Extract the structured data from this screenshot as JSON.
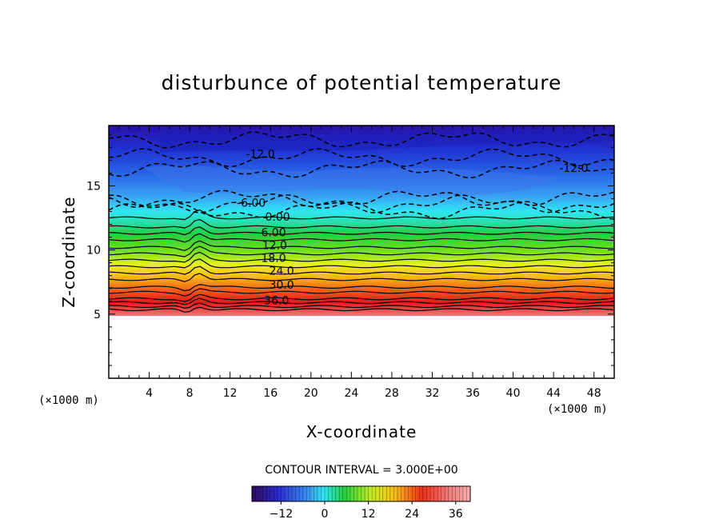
{
  "chart_data": {
    "type": "contour",
    "title": "disturbunce of potential temperature",
    "xlabel": "X-coordinate",
    "ylabel": "Z-coordinate",
    "x_unit": "(×1000 m)",
    "y_unit": "(×1000 m)",
    "xlim": [
      0,
      50
    ],
    "ylim": [
      0,
      19.7
    ],
    "x_ticks": [
      4,
      8,
      12,
      16,
      20,
      24,
      28,
      32,
      36,
      40,
      44,
      48
    ],
    "y_ticks": [
      5,
      10,
      15
    ],
    "terrain_top_z": 5,
    "contour_interval_label": "CONTOUR INTERVAL = 3.000E+00",
    "contour_labels": [
      {
        "text": "-12.0",
        "x": 15.0,
        "z": 17.3
      },
      {
        "text": "-12.0",
        "x": 46.0,
        "z": 16.2
      },
      {
        "text": "-6.00",
        "x": 14.1,
        "z": 13.5
      },
      {
        "text": "0.00",
        "x": 16.7,
        "z": 12.4
      },
      {
        "text": "6.00",
        "x": 16.3,
        "z": 11.2
      },
      {
        "text": "12.0",
        "x": 16.4,
        "z": 10.2
      },
      {
        "text": "18.0",
        "x": 16.3,
        "z": 9.2
      },
      {
        "text": "24.0",
        "x": 17.1,
        "z": 8.2
      },
      {
        "text": "30.0",
        "x": 17.1,
        "z": 7.1
      },
      {
        "text": "36.0",
        "x": 16.6,
        "z": 5.9
      }
    ],
    "colorbar": {
      "min": -20,
      "max": 40,
      "ticks": [
        -12,
        0,
        12,
        24,
        36
      ],
      "tick_labels": [
        "−12",
        "0",
        "12",
        "24",
        "36"
      ]
    }
  }
}
